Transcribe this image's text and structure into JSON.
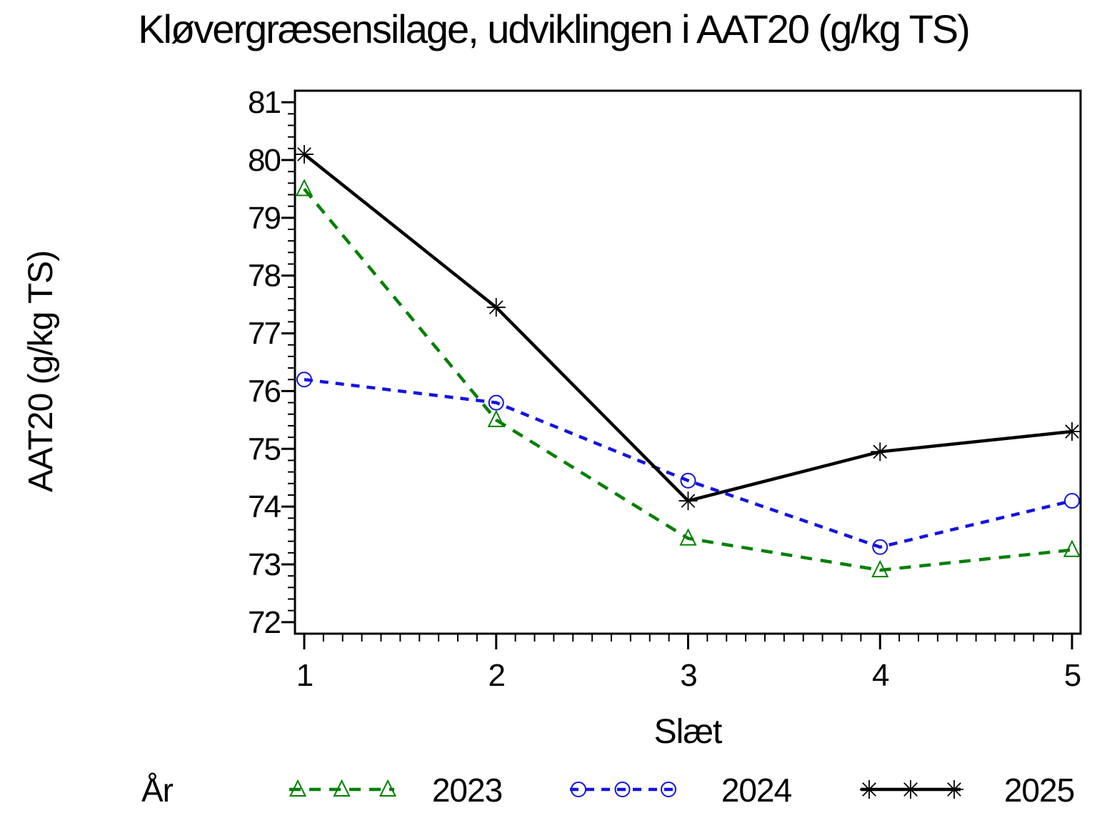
{
  "title": "Kløvergræsensilage, udviklingen i AAT20 (g/kg TS)",
  "chart_data": {
    "type": "line",
    "title": "Kløvergræsensilage, udviklingen i AAT20 (g/kg TS)",
    "xlabel": "Slæt",
    "ylabel": "AAT20 (g/kg TS)",
    "categories": [
      "1",
      "2",
      "3",
      "4",
      "5"
    ],
    "series": [
      {
        "name": "2023",
        "color": "#008000",
        "dash": "16 12",
        "marker": "triangle",
        "values": [
          79.5,
          75.5,
          73.45,
          72.9,
          73.25
        ]
      },
      {
        "name": "2024",
        "color": "#1414e0",
        "dash": "12 10",
        "marker": "circle",
        "values": [
          76.2,
          75.8,
          74.45,
          73.3,
          74.1
        ]
      },
      {
        "name": "2025",
        "color": "#000000",
        "dash": "",
        "marker": "asterisk",
        "values": [
          80.1,
          77.45,
          74.1,
          74.95,
          75.3
        ]
      }
    ],
    "ylim": [
      71.8,
      81.2
    ],
    "yticks": [
      72,
      73,
      74,
      75,
      76,
      77,
      78,
      79,
      80,
      81
    ],
    "y_minor_step": 0.2,
    "x_minor_step": 0.1,
    "grid": false,
    "legend_title": "År",
    "legend_position": "bottom",
    "axis_color": "#000000",
    "background_color": "#ffffff"
  }
}
